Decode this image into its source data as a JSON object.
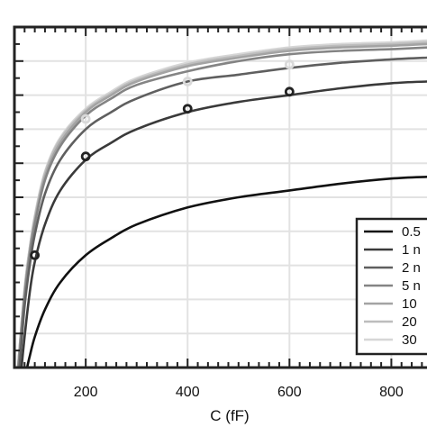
{
  "chart_data": {
    "type": "line",
    "title": "",
    "xlabel": "C (fF)",
    "ylabel": "",
    "xlim": [
      60,
      870
    ],
    "ylim": [
      0,
      1.0
    ],
    "x_ticks": [
      200,
      400,
      600,
      800
    ],
    "x_tick_labels": [
      "200",
      "400",
      "600",
      "800"
    ],
    "y_gridlines": [
      0.1,
      0.2,
      0.3,
      0.4,
      0.5,
      0.6,
      0.7,
      0.8,
      0.9,
      1.0
    ],
    "grid": true,
    "legend_position": "right",
    "legend": [
      "0.5",
      "1 n",
      "2 n",
      "5 n",
      "10",
      "20",
      "30"
    ],
    "series": [
      {
        "name": "0.5",
        "color": "#111111",
        "x": [
          85,
          90,
          100,
          120,
          150,
          200,
          250,
          300,
          400,
          500,
          600,
          700,
          800,
          870
        ],
        "y": [
          0.0,
          0.033,
          0.09,
          0.17,
          0.25,
          0.33,
          0.38,
          0.42,
          0.47,
          0.5,
          0.52,
          0.54,
          0.555,
          0.56
        ]
      },
      {
        "name": "1 n",
        "color": "#3a3a3a",
        "x": [
          74,
          80,
          90,
          100,
          120,
          150,
          200,
          250,
          300,
          400,
          500,
          600,
          700,
          800,
          870
        ],
        "y": [
          0.0,
          0.09,
          0.22,
          0.31,
          0.42,
          0.52,
          0.61,
          0.66,
          0.7,
          0.75,
          0.78,
          0.8,
          0.82,
          0.835,
          0.84
        ]
      },
      {
        "name": "2 n",
        "color": "#5f5f5f",
        "x": [
          70,
          80,
          90,
          100,
          120,
          150,
          200,
          250,
          300,
          400,
          500,
          600,
          700,
          800,
          870
        ],
        "y": [
          0.0,
          0.18,
          0.3,
          0.39,
          0.51,
          0.61,
          0.7,
          0.75,
          0.79,
          0.84,
          0.86,
          0.88,
          0.895,
          0.905,
          0.91
        ]
      },
      {
        "name": "5 n",
        "color": "#848484",
        "x": [
          68,
          80,
          90,
          100,
          120,
          150,
          200,
          250,
          300,
          400,
          500,
          600,
          700,
          800,
          870
        ],
        "y": [
          0.0,
          0.21,
          0.33,
          0.42,
          0.55,
          0.65,
          0.74,
          0.79,
          0.83,
          0.87,
          0.9,
          0.92,
          0.93,
          0.935,
          0.94
        ]
      },
      {
        "name": "10",
        "color": "#a3a3a3",
        "x": [
          67,
          80,
          90,
          100,
          120,
          150,
          200,
          250,
          300,
          400,
          500,
          600,
          700,
          800,
          870
        ],
        "y": [
          0.0,
          0.22,
          0.34,
          0.43,
          0.56,
          0.66,
          0.75,
          0.8,
          0.84,
          0.885,
          0.91,
          0.93,
          0.94,
          0.945,
          0.95
        ]
      },
      {
        "name": "20",
        "color": "#bdbdbd",
        "x": [
          67,
          80,
          90,
          100,
          120,
          150,
          200,
          250,
          300,
          400,
          500,
          600,
          700,
          800,
          870
        ],
        "y": [
          0.0,
          0.23,
          0.35,
          0.44,
          0.57,
          0.67,
          0.755,
          0.805,
          0.845,
          0.89,
          0.915,
          0.935,
          0.945,
          0.95,
          0.955
        ]
      },
      {
        "name": "30",
        "color": "#d6d6d6",
        "x": [
          67,
          80,
          90,
          100,
          120,
          150,
          200,
          250,
          300,
          400,
          500,
          600,
          700,
          800,
          870
        ],
        "y": [
          0.0,
          0.23,
          0.35,
          0.445,
          0.575,
          0.675,
          0.76,
          0.81,
          0.85,
          0.895,
          0.92,
          0.94,
          0.95,
          0.955,
          0.96
        ]
      }
    ],
    "markers": [
      {
        "name": "dark-points",
        "color": "#222222",
        "x": [
          100,
          200,
          400,
          600
        ],
        "y": [
          0.33,
          0.62,
          0.76,
          0.81
        ]
      },
      {
        "name": "light-points",
        "color": "#d9d9d9",
        "x": [
          200,
          400,
          600
        ],
        "y": [
          0.73,
          0.84,
          0.89
        ]
      }
    ]
  }
}
